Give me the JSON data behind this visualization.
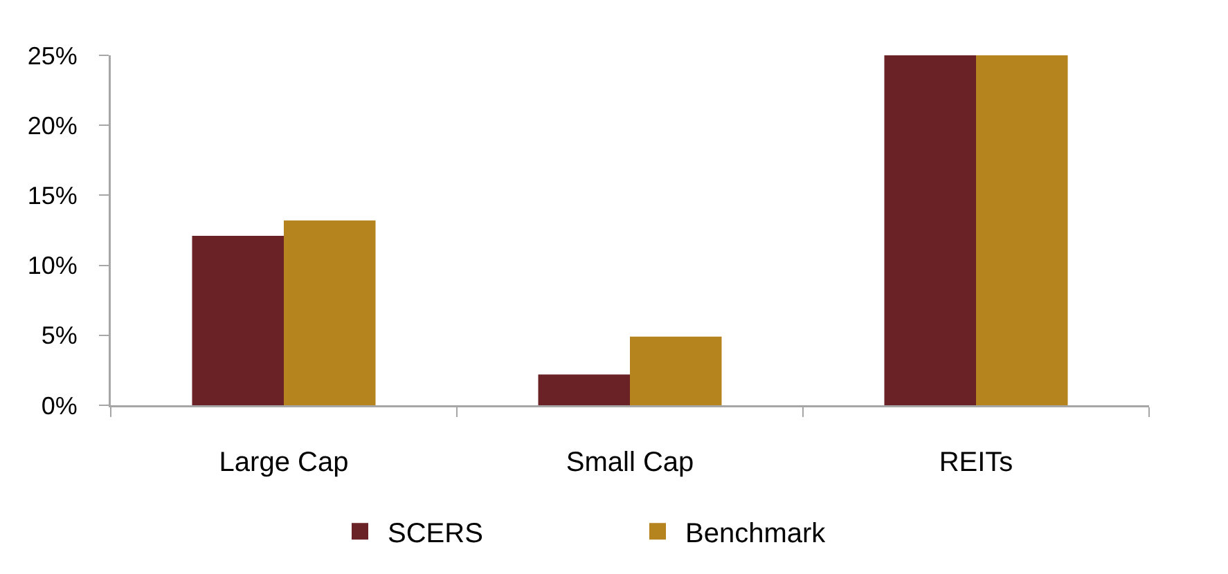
{
  "chart_data": {
    "type": "bar",
    "categories": [
      "Large Cap",
      "Small Cap",
      "REITs"
    ],
    "series": [
      {
        "name": "SCERS",
        "color": "#6b2226",
        "values": [
          12.1,
          2.2,
          25.0
        ]
      },
      {
        "name": "Benchmark",
        "color": "#b5841f",
        "values": [
          13.2,
          4.9,
          25.0
        ]
      }
    ],
    "ylim": [
      0,
      25
    ],
    "yticks": [
      {
        "value": 0,
        "label": "0%"
      },
      {
        "value": 5,
        "label": "5%"
      },
      {
        "value": 10,
        "label": "10%"
      },
      {
        "value": 15,
        "label": "15%"
      },
      {
        "value": 20,
        "label": "20%"
      },
      {
        "value": 25,
        "label": "25%"
      }
    ],
    "legend": "bottom"
  }
}
